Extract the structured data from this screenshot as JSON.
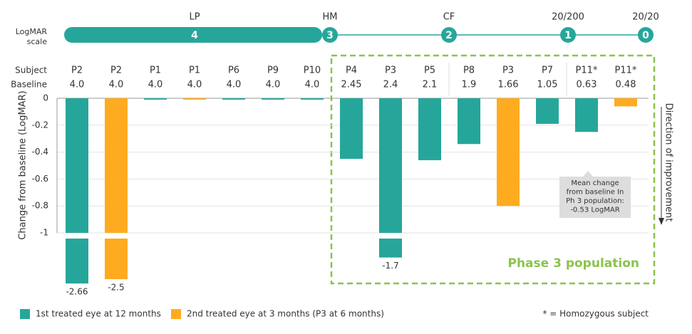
{
  "chart_data": {
    "type": "bar",
    "y_axis_label": "Change from baseline (LogMAR)",
    "right_axis_label": "Direction of improvement",
    "logmar_scale": {
      "label_lines": [
        "LogMAR",
        "scale"
      ],
      "points": [
        {
          "acuity": "LP",
          "value": 4
        },
        {
          "acuity": "HM",
          "value": 3
        },
        {
          "acuity": "CF",
          "value": 2
        },
        {
          "acuity": "20/200",
          "value": 1
        },
        {
          "acuity": "20/20",
          "value": 0
        }
      ]
    },
    "row_labels": [
      "Subject",
      "Baseline"
    ],
    "categories": [
      "P2",
      "P2",
      "P1",
      "P1",
      "P6",
      "P9",
      "P10",
      "P4",
      "P3",
      "P5",
      "P8",
      "P3",
      "P7",
      "P11*",
      "P11*"
    ],
    "baselines": [
      "4.0",
      "4.0",
      "4.0",
      "4.0",
      "4.0",
      "4.0",
      "4.0",
      "2.45",
      "2.4",
      "2.1",
      "1.9",
      "1.66",
      "1.05",
      "0.63",
      "0.48"
    ],
    "series": [
      {
        "name": "1st treated eye at 12 months",
        "color": "#26a69a",
        "values": [
          -2.66,
          null,
          -0.01,
          null,
          -0.01,
          -0.01,
          -0.01,
          -0.45,
          -1.7,
          -0.46,
          -0.34,
          null,
          -0.19,
          -0.25,
          null
        ]
      },
      {
        "name": "2nd treated eye at 3 months (P3 at 6 months)",
        "color": "#ffab1f",
        "values": [
          null,
          -2.5,
          null,
          -0.01,
          null,
          null,
          null,
          null,
          null,
          null,
          null,
          -0.8,
          null,
          null,
          -0.06
        ]
      }
    ],
    "ylim": [
      -1,
      0
    ],
    "yticks": [
      0,
      -0.2,
      -0.4,
      -0.6,
      -0.8,
      -1
    ],
    "axis_break": true,
    "grid": true,
    "phase3_label": "Phase 3 population",
    "annotation_lines": [
      "Mean change",
      "from baseline In",
      "Ph 3 population:",
      "-0.53 LogMAR"
    ],
    "footnote": "* = Homozygous subject"
  }
}
